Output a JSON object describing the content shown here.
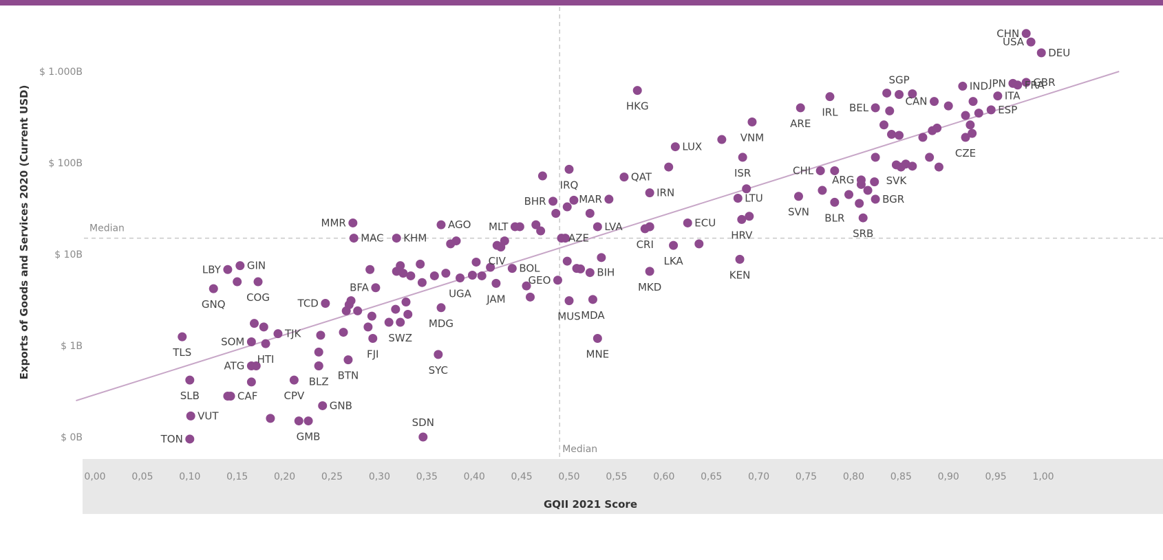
{
  "colors": {
    "point": "#8e4a8e",
    "trend": "#c7a6c7",
    "top_band": "#8e4a8e",
    "axis_band": "#e8e8e8",
    "median_line": "#c8c8c8",
    "tick_text": "#8a8a8a",
    "label_text": "#444444"
  },
  "chart_data": {
    "type": "scatter",
    "xlabel": "GQII 2021 Score",
    "ylabel": "Exports of Goods and Services 2020 (Current USD)",
    "x_ticks": [
      "0,00",
      "0,05",
      "0,10",
      "0,15",
      "0,20",
      "0,25",
      "0,30",
      "0,35",
      "0,40",
      "0,45",
      "0,50",
      "0,55",
      "0,60",
      "0,65",
      "0,70",
      "0,75",
      "0,80",
      "0,85",
      "0,90",
      "0,95",
      "1,00"
    ],
    "y_ticks": [
      {
        "label": "$ 1.000B",
        "value": 1000
      },
      {
        "label": "$ 100B",
        "value": 100
      },
      {
        "label": "$ 10B",
        "value": 10
      },
      {
        "label": "$ 1B",
        "value": 1
      },
      {
        "label": "$ 0B",
        "value": 0.1
      }
    ],
    "xlim": [
      -0.02,
      1.08
    ],
    "y_scale": "log",
    "ylim_billion_usd": [
      0.045,
      5000
    ],
    "grid": false,
    "median_x": 0.49,
    "median_y_billion_usd": 15,
    "median_label": "Median",
    "trendline": {
      "x": [
        -0.02,
        1.08
      ],
      "y_billion_usd": [
        0.25,
        1000
      ]
    },
    "points": [
      {
        "label": "CHN",
        "x": 0.982,
        "y": 2600
      },
      {
        "label": "USA",
        "x": 0.987,
        "y": 2100
      },
      {
        "label": "DEU",
        "x": 0.998,
        "y": 1600
      },
      {
        "label": "JPN",
        "x": 0.968,
        "y": 740
      },
      {
        "label": "GBR",
        "x": 0.982,
        "y": 760
      },
      {
        "label": "FRA",
        "x": 0.973,
        "y": 710
      },
      {
        "label": "ITA",
        "x": 0.952,
        "y": 540
      },
      {
        "label": "IND",
        "x": 0.915,
        "y": 690
      },
      {
        "label": "ESP",
        "x": 0.945,
        "y": 380
      },
      {
        "label": "CAN",
        "x": 0.885,
        "y": 470
      },
      {
        "label": "CZE",
        "x": 0.918,
        "y": 190
      },
      {
        "label": "SGP",
        "x": 0.848,
        "y": 560
      },
      {
        "label": "BEL",
        "x": 0.823,
        "y": 400
      },
      {
        "label": "IRL",
        "x": 0.775,
        "y": 530
      },
      {
        "label": "ARE",
        "x": 0.744,
        "y": 400
      },
      {
        "label": "SVK",
        "x": 0.845,
        "y": 95
      },
      {
        "label": "ARG",
        "x": 0.808,
        "y": 65
      },
      {
        "label": "BGR",
        "x": 0.823,
        "y": 40
      },
      {
        "label": "SRB",
        "x": 0.81,
        "y": 25
      },
      {
        "label": "BLR",
        "x": 0.78,
        "y": 37
      },
      {
        "label": "CHL",
        "x": 0.765,
        "y": 82
      },
      {
        "label": "SVN",
        "x": 0.742,
        "y": 43
      },
      {
        "label": "HRV",
        "x": 0.682,
        "y": 24
      },
      {
        "label": "KEN",
        "x": 0.68,
        "y": 8.8
      },
      {
        "label": "ISR",
        "x": 0.683,
        "y": 115
      },
      {
        "label": "LTU",
        "x": 0.678,
        "y": 41
      },
      {
        "label": "VNM",
        "x": 0.693,
        "y": 280
      },
      {
        "label": "LUX",
        "x": 0.612,
        "y": 150
      },
      {
        "label": "ECU",
        "x": 0.625,
        "y": 22
      },
      {
        "label": "LKA",
        "x": 0.61,
        "y": 12.5
      },
      {
        "label": "MKD",
        "x": 0.585,
        "y": 6.5
      },
      {
        "label": "CRI",
        "x": 0.58,
        "y": 19
      },
      {
        "label": "IRN",
        "x": 0.585,
        "y": 47
      },
      {
        "label": "QAT",
        "x": 0.558,
        "y": 70
      },
      {
        "label": "HKG",
        "x": 0.572,
        "y": 620
      },
      {
        "label": "MAR",
        "x": 0.542,
        "y": 40
      },
      {
        "label": "LVA",
        "x": 0.53,
        "y": 20
      },
      {
        "label": "IRQ",
        "x": 0.5,
        "y": 85
      },
      {
        "label": "BHR",
        "x": 0.483,
        "y": 38
      },
      {
        "label": "AZE",
        "x": 0.492,
        "y": 15
      },
      {
        "label": "BIH",
        "x": 0.522,
        "y": 6.3
      },
      {
        "label": "MDA",
        "x": 0.525,
        "y": 3.2
      },
      {
        "label": "MNE",
        "x": 0.53,
        "y": 1.2
      },
      {
        "label": "MUS",
        "x": 0.5,
        "y": 3.1
      },
      {
        "label": "GEO",
        "x": 0.488,
        "y": 5.2
      },
      {
        "label": "MLT",
        "x": 0.443,
        "y": 20
      },
      {
        "label": "CIV",
        "x": 0.424,
        "y": 12.5
      },
      {
        "label": "BOL",
        "x": 0.44,
        "y": 7.0
      },
      {
        "label": "JAM",
        "x": 0.423,
        "y": 4.8
      },
      {
        "label": "UGA",
        "x": 0.385,
        "y": 5.5
      },
      {
        "label": "AGO",
        "x": 0.365,
        "y": 21
      },
      {
        "label": "MDG",
        "x": 0.365,
        "y": 2.6
      },
      {
        "label": "SYC",
        "x": 0.362,
        "y": 0.8
      },
      {
        "label": "SDN",
        "x": 0.346,
        "y": 0.1
      },
      {
        "label": "KHM",
        "x": 0.318,
        "y": 15
      },
      {
        "label": "MAC",
        "x": 0.273,
        "y": 15
      },
      {
        "label": "MMR",
        "x": 0.272,
        "y": 22
      },
      {
        "label": "BFA",
        "x": 0.296,
        "y": 4.3
      },
      {
        "label": "SWZ",
        "x": 0.322,
        "y": 1.8
      },
      {
        "label": "FJI",
        "x": 0.293,
        "y": 1.2
      },
      {
        "label": "BTN",
        "x": 0.267,
        "y": 0.7
      },
      {
        "label": "GNB",
        "x": 0.24,
        "y": 0.22
      },
      {
        "label": "BLZ",
        "x": 0.236,
        "y": 0.6
      },
      {
        "label": "GMB",
        "x": 0.225,
        "y": 0.15
      },
      {
        "label": "CPV",
        "x": 0.21,
        "y": 0.42
      },
      {
        "label": "TCD",
        "x": 0.243,
        "y": 2.9
      },
      {
        "label": "TJK",
        "x": 0.193,
        "y": 1.35
      },
      {
        "label": "HTI",
        "x": 0.18,
        "y": 1.05
      },
      {
        "label": "SOM",
        "x": 0.165,
        "y": 1.1
      },
      {
        "label": "ATG",
        "x": 0.165,
        "y": 0.6
      },
      {
        "label": "CAF",
        "x": 0.143,
        "y": 0.28
      },
      {
        "label": "GIN",
        "x": 0.153,
        "y": 7.5
      },
      {
        "label": "LBY",
        "x": 0.14,
        "y": 6.8
      },
      {
        "label": "COG",
        "x": 0.172,
        "y": 5.0
      },
      {
        "label": "GNQ",
        "x": 0.125,
        "y": 4.2
      },
      {
        "label": "TLS",
        "x": 0.092,
        "y": 1.25
      },
      {
        "label": "SLB",
        "x": 0.1,
        "y": 0.42
      },
      {
        "label": "VUT",
        "x": 0.101,
        "y": 0.17
      },
      {
        "label": "TON",
        "x": 0.1,
        "y": 0.095
      }
    ],
    "extra_points": [
      {
        "x": 0.835,
        "y": 580
      },
      {
        "x": 0.838,
        "y": 370
      },
      {
        "x": 0.832,
        "y": 260
      },
      {
        "x": 0.84,
        "y": 205
      },
      {
        "x": 0.848,
        "y": 200
      },
      {
        "x": 0.862,
        "y": 570
      },
      {
        "x": 0.873,
        "y": 190
      },
      {
        "x": 0.883,
        "y": 225
      },
      {
        "x": 0.888,
        "y": 240
      },
      {
        "x": 0.9,
        "y": 420
      },
      {
        "x": 0.918,
        "y": 330
      },
      {
        "x": 0.923,
        "y": 260
      },
      {
        "x": 0.926,
        "y": 470
      },
      {
        "x": 0.932,
        "y": 350
      },
      {
        "x": 0.925,
        "y": 210
      },
      {
        "x": 0.88,
        "y": 115
      },
      {
        "x": 0.89,
        "y": 90
      },
      {
        "x": 0.85,
        "y": 90
      },
      {
        "x": 0.855,
        "y": 97
      },
      {
        "x": 0.862,
        "y": 92
      },
      {
        "x": 0.823,
        "y": 115
      },
      {
        "x": 0.808,
        "y": 58
      },
      {
        "x": 0.815,
        "y": 50
      },
      {
        "x": 0.822,
        "y": 62
      },
      {
        "x": 0.795,
        "y": 45
      },
      {
        "x": 0.78,
        "y": 82
      },
      {
        "x": 0.767,
        "y": 50
      },
      {
        "x": 0.806,
        "y": 36
      },
      {
        "x": 0.687,
        "y": 52
      },
      {
        "x": 0.69,
        "y": 26
      },
      {
        "x": 0.661,
        "y": 180
      },
      {
        "x": 0.605,
        "y": 90
      },
      {
        "x": 0.637,
        "y": 13
      },
      {
        "x": 0.585,
        "y": 20
      },
      {
        "x": 0.585,
        "y": 20
      },
      {
        "x": 0.534,
        "y": 9.2
      },
      {
        "x": 0.522,
        "y": 28
      },
      {
        "x": 0.512,
        "y": 6.9
      },
      {
        "x": 0.508,
        "y": 7.0
      },
      {
        "x": 0.505,
        "y": 39
      },
      {
        "x": 0.498,
        "y": 33
      },
      {
        "x": 0.486,
        "y": 28
      },
      {
        "x": 0.472,
        "y": 72
      },
      {
        "x": 0.47,
        "y": 18
      },
      {
        "x": 0.465,
        "y": 21
      },
      {
        "x": 0.498,
        "y": 8.4
      },
      {
        "x": 0.496,
        "y": 15
      },
      {
        "x": 0.459,
        "y": 3.4
      },
      {
        "x": 0.455,
        "y": 4.5
      },
      {
        "x": 0.448,
        "y": 20
      },
      {
        "x": 0.432,
        "y": 14
      },
      {
        "x": 0.428,
        "y": 12
      },
      {
        "x": 0.417,
        "y": 7.2
      },
      {
        "x": 0.408,
        "y": 5.8
      },
      {
        "x": 0.402,
        "y": 8.2
      },
      {
        "x": 0.398,
        "y": 5.9
      },
      {
        "x": 0.381,
        "y": 14
      },
      {
        "x": 0.375,
        "y": 13
      },
      {
        "x": 0.37,
        "y": 6.2
      },
      {
        "x": 0.358,
        "y": 5.8
      },
      {
        "x": 0.343,
        "y": 7.8
      },
      {
        "x": 0.345,
        "y": 4.9
      },
      {
        "x": 0.333,
        "y": 5.8
      },
      {
        "x": 0.325,
        "y": 6.2
      },
      {
        "x": 0.318,
        "y": 6.5
      },
      {
        "x": 0.328,
        "y": 3.0
      },
      {
        "x": 0.33,
        "y": 2.2
      },
      {
        "x": 0.317,
        "y": 2.5
      },
      {
        "x": 0.322,
        "y": 7.5
      },
      {
        "x": 0.31,
        "y": 1.8
      },
      {
        "x": 0.292,
        "y": 2.1
      },
      {
        "x": 0.29,
        "y": 6.8
      },
      {
        "x": 0.288,
        "y": 1.6
      },
      {
        "x": 0.277,
        "y": 2.4
      },
      {
        "x": 0.27,
        "y": 3.1
      },
      {
        "x": 0.268,
        "y": 2.8
      },
      {
        "x": 0.265,
        "y": 2.4
      },
      {
        "x": 0.262,
        "y": 1.4
      },
      {
        "x": 0.238,
        "y": 1.3
      },
      {
        "x": 0.236,
        "y": 0.85
      },
      {
        "x": 0.236,
        "y": 0.6
      },
      {
        "x": 0.215,
        "y": 0.15
      },
      {
        "x": 0.185,
        "y": 0.16
      },
      {
        "x": 0.168,
        "y": 1.75
      },
      {
        "x": 0.165,
        "y": 0.4
      },
      {
        "x": 0.17,
        "y": 0.6
      },
      {
        "x": 0.178,
        "y": 1.6
      },
      {
        "x": 0.14,
        "y": 0.28
      },
      {
        "x": 0.15,
        "y": 5.0
      }
    ]
  }
}
